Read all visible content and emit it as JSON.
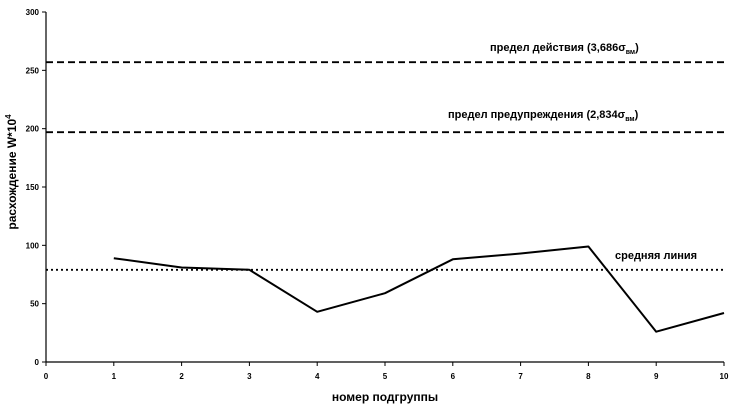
{
  "chart_data": {
    "type": "line",
    "title": "",
    "xlabel": "номер подгруппы",
    "ylabel": "расхождение W*10",
    "ylabel_exponent": "4",
    "xlim": [
      0,
      10
    ],
    "ylim": [
      0,
      300
    ],
    "x_ticks": [
      0,
      1,
      2,
      3,
      4,
      5,
      6,
      7,
      8,
      9,
      10
    ],
    "y_ticks": [
      0,
      50,
      100,
      150,
      200,
      250,
      300
    ],
    "grid": false,
    "series": [
      {
        "x": [
          1,
          2,
          3,
          4,
          5,
          6,
          7,
          8,
          9,
          10
        ],
        "values": [
          89,
          81,
          79,
          43,
          59,
          88,
          93,
          99,
          26,
          42
        ],
        "color": "#000000"
      }
    ],
    "reference_lines": [
      {
        "label_prefix": "предел действия (3,686",
        "label_sigma": "σ",
        "label_sub": "вм",
        "label_suffix": ")",
        "y": 257,
        "style": "dashed"
      },
      {
        "label_prefix": "предел предупреждения (2,834",
        "label_sigma": "σ",
        "label_sub": "вм",
        "label_suffix": ")",
        "y": 197,
        "style": "dashed"
      },
      {
        "label": "средняя линия",
        "y": 79,
        "style": "dotted"
      }
    ]
  }
}
